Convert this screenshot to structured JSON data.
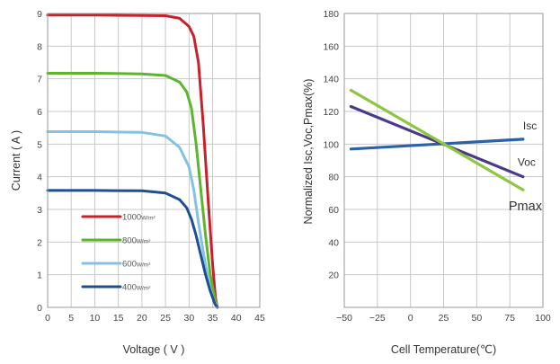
{
  "chart_data": [
    {
      "type": "line",
      "xlabel": "Voltage ( V )",
      "ylabel": "Current ( A )",
      "xlim": [
        0,
        45
      ],
      "ylim": [
        0,
        9
      ],
      "xticks": [
        "0",
        "5",
        "10",
        "15",
        "20",
        "25",
        "30",
        "35",
        "40",
        "45"
      ],
      "yticks": [
        "0",
        "1",
        "2",
        "3",
        "4",
        "5",
        "6",
        "7",
        "8",
        "9"
      ],
      "grid": true,
      "legend_position": "lower-left",
      "series": [
        {
          "name": "1000",
          "unit": "W/m²",
          "color": "#c8212b",
          "x": [
            0,
            10,
            20,
            25,
            28,
            30,
            31,
            32,
            33,
            34,
            35,
            35.6,
            36
          ],
          "y": [
            8.95,
            8.95,
            8.94,
            8.93,
            8.85,
            8.6,
            8.3,
            7.5,
            5.6,
            3.4,
            1.3,
            0.3,
            0
          ]
        },
        {
          "name": "800",
          "unit": "W/m²",
          "color": "#5db52e",
          "x": [
            0,
            10,
            20,
            25,
            28,
            29.5,
            30.5,
            31.5,
            32.5,
            33.5,
            34.5,
            35.5,
            36
          ],
          "y": [
            7.17,
            7.17,
            7.15,
            7.1,
            6.9,
            6.6,
            6.1,
            5.0,
            3.6,
            2.2,
            1.0,
            0.25,
            0
          ]
        },
        {
          "name": "600",
          "unit": "W/m²",
          "color": "#85c1e3",
          "x": [
            0,
            10,
            20,
            25,
            28,
            30,
            31,
            32,
            33,
            34,
            35,
            36
          ],
          "y": [
            5.38,
            5.38,
            5.36,
            5.25,
            4.9,
            4.3,
            3.6,
            2.6,
            1.7,
            0.9,
            0.3,
            0
          ]
        },
        {
          "name": "400",
          "unit": "W/m²",
          "color": "#1f4e93",
          "x": [
            0,
            10,
            20,
            25,
            28,
            29.5,
            30.5,
            31.5,
            32.5,
            33.5,
            34.5,
            35.5,
            36
          ],
          "y": [
            3.58,
            3.58,
            3.57,
            3.5,
            3.3,
            3.05,
            2.7,
            2.2,
            1.6,
            1.0,
            0.5,
            0.1,
            0
          ]
        }
      ]
    },
    {
      "type": "line",
      "xlabel": "Cell Temperature(℃)",
      "ylabel": "Normalized Isc,Voc,Pmax(%)",
      "xlim": [
        -50,
        100
      ],
      "ylim": [
        0,
        180
      ],
      "xticks": [
        "−50",
        "−25",
        "0",
        "25",
        "50",
        "75",
        "100"
      ],
      "yticks": [
        "20",
        "40",
        "60",
        "80",
        "100",
        "120",
        "140",
        "160",
        "180"
      ],
      "grid": true,
      "series": [
        {
          "name": "Isc",
          "color": "#2a62a8",
          "x": [
            -45,
            85
          ],
          "y": [
            97,
            103
          ]
        },
        {
          "name": "Voc",
          "color": "#4b3a8c",
          "x": [
            -45,
            85
          ],
          "y": [
            123,
            80
          ]
        },
        {
          "name": "Pmax",
          "color": "#8dc63f",
          "x": [
            -45,
            85
          ],
          "y": [
            133,
            72
          ]
        }
      ]
    }
  ]
}
